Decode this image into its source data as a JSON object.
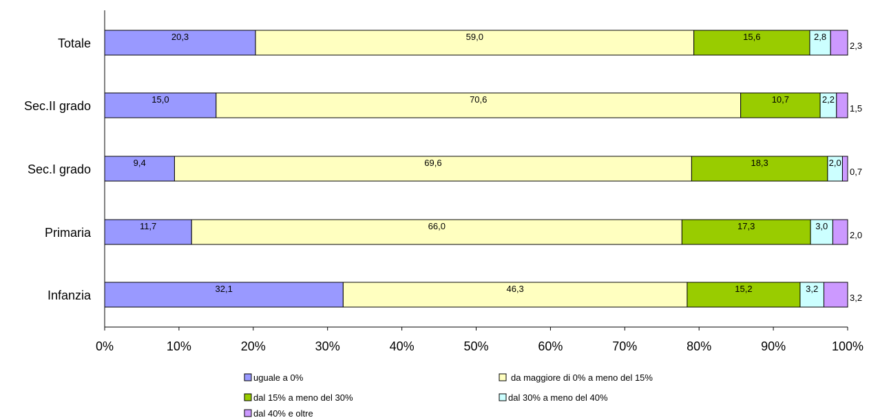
{
  "chart_data": {
    "type": "bar",
    "orientation": "horizontal",
    "stacked": "percent",
    "categories": [
      "Totale",
      "Sec.II grado",
      "Sec.I grado",
      "Primaria",
      "Infanzia"
    ],
    "series": [
      {
        "name": "uguale a 0%",
        "color": "#9999ff",
        "values": [
          20.3,
          15.0,
          9.4,
          11.7,
          32.1
        ],
        "labels": [
          "20,3",
          "15,0",
          "9,4",
          "11,7",
          "32,1"
        ]
      },
      {
        "name": "da maggiore di 0% a meno del 15%",
        "color": "#ffffc0",
        "values": [
          59.0,
          70.6,
          69.6,
          66.0,
          46.3
        ],
        "labels": [
          "59,0",
          "70,6",
          "69,6",
          "66,0",
          "46,3"
        ]
      },
      {
        "name": "dal 15% a meno del 30%",
        "color": "#99cc00",
        "values": [
          15.6,
          10.7,
          18.3,
          17.3,
          15.2
        ],
        "labels": [
          "15,6",
          "10,7",
          "18,3",
          "17,3",
          "15,2"
        ]
      },
      {
        "name": "dal 30% a meno del 40%",
        "color": "#ccffff",
        "values": [
          2.8,
          2.2,
          2.0,
          3.0,
          3.2
        ],
        "labels": [
          "2,8",
          "2,2",
          "2,0",
          "3,0",
          "3,2"
        ]
      },
      {
        "name": "dal 40% e oltre",
        "color": "#cc99ff",
        "values": [
          2.3,
          1.5,
          0.7,
          2.0,
          3.2
        ],
        "labels": [
          "2,3",
          "1,5",
          "0,7",
          "2,0",
          "3,2"
        ]
      }
    ],
    "x_ticks": [
      "0%",
      "10%",
      "20%",
      "30%",
      "40%",
      "50%",
      "60%",
      "70%",
      "80%",
      "90%",
      "100%"
    ],
    "xlim": [
      0,
      100
    ],
    "grid": false,
    "legend_position": "bottom"
  }
}
